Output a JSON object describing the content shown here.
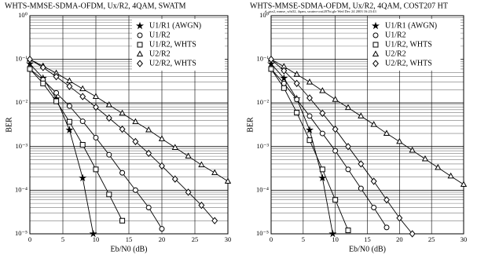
{
  "chart_data": [
    {
      "type": "line",
      "title": "WHTS-MMSE-SDMA-OFDM, Ux/R2, 4QAM, SWATM",
      "xlabel": "Eb/N0 (dB)",
      "ylabel": "BER",
      "xlim": [
        0,
        30
      ],
      "xticks": [
        0,
        5,
        10,
        15,
        20,
        25,
        30
      ],
      "ylim": [
        1e-05,
        1
      ],
      "log_y": true,
      "grid": true,
      "minor_grid": true,
      "legend": "upper right",
      "yticks": [
        {
          "value": 1e-05,
          "label": "10⁻⁵"
        },
        {
          "value": 0.0001,
          "label": "10⁻⁴"
        },
        {
          "value": 0.001,
          "label": "10⁻³"
        },
        {
          "value": 0.01,
          "label": "10⁻²"
        },
        {
          "value": 0.1,
          "label": "10⁻¹"
        },
        {
          "value": 1,
          "label": "10⁰"
        }
      ],
      "series": [
        {
          "name": "U1/R1 (AWGN)",
          "marker": "star",
          "color": "#000000",
          "x": [
            0,
            2,
            4,
            6,
            8,
            9.6
          ],
          "values": [
            0.079,
            0.037,
            0.0125,
            0.0024,
            0.00019,
            1e-05
          ]
        },
        {
          "name": "U1/R2",
          "marker": "circle",
          "color": "#000000",
          "x": [
            0,
            2,
            4,
            6,
            8,
            10,
            12,
            14,
            16,
            18,
            20
          ],
          "values": [
            0.06,
            0.034,
            0.017,
            0.0085,
            0.0038,
            0.0016,
            0.00065,
            0.00025,
            0.0001,
            4e-05,
            1.3e-05
          ]
        },
        {
          "name": "U1/R2, WHTS",
          "marker": "square",
          "color": "#000000",
          "x": [
            0,
            2,
            4,
            6,
            8,
            10,
            12,
            14
          ],
          "values": [
            0.06,
            0.028,
            0.011,
            0.0037,
            0.0011,
            0.0003,
            8e-05,
            2e-05
          ]
        },
        {
          "name": "U2/R2",
          "marker": "triangle",
          "color": "#000000",
          "x": [
            0,
            2,
            4,
            6,
            8,
            10,
            12,
            14,
            16,
            18,
            20,
            22,
            24,
            26,
            28,
            30
          ],
          "values": [
            0.1,
            0.07,
            0.048,
            0.032,
            0.021,
            0.014,
            0.009,
            0.0058,
            0.0037,
            0.0024,
            0.0015,
            0.00095,
            0.0006,
            0.00038,
            0.00025,
            0.00016
          ]
        },
        {
          "name": "U2/R2, WHTS",
          "marker": "diamond",
          "color": "#000000",
          "x": [
            0,
            2,
            4,
            6,
            8,
            10,
            12,
            14,
            16,
            18,
            20,
            22,
            24,
            26,
            28
          ],
          "values": [
            0.1,
            0.065,
            0.04,
            0.024,
            0.014,
            0.008,
            0.0045,
            0.0025,
            0.0013,
            0.0007,
            0.00036,
            0.00018,
            9e-05,
            4.5e-05,
            2e-05
          ]
        }
      ]
    },
    {
      "type": "line",
      "title": "WHTS-MMSE-SDMA-OFDM, Ux/R2, 4QAM, COST207 HT",
      "subtitle": "d_gsx2, mmse_wht32, 4qam, swatm-cost207ht.gle   Wed Dec 24 2003 16:23:43",
      "xlabel": "Eb/N0 (dB)",
      "ylabel": "BER",
      "xlim": [
        0,
        30
      ],
      "xticks": [
        0,
        5,
        10,
        15,
        20,
        25,
        30
      ],
      "ylim": [
        1e-05,
        1
      ],
      "log_y": true,
      "grid": true,
      "minor_grid": true,
      "legend": "upper right",
      "yticks": [
        {
          "value": 1e-05,
          "label": "10⁻⁵"
        },
        {
          "value": 0.0001,
          "label": "10⁻⁴"
        },
        {
          "value": 0.001,
          "label": "10⁻³"
        },
        {
          "value": 0.01,
          "label": "10⁻²"
        },
        {
          "value": 0.1,
          "label": "10⁻¹"
        },
        {
          "value": 1,
          "label": "10⁰"
        }
      ],
      "series": [
        {
          "name": "U1/R1 (AWGN)",
          "marker": "star",
          "color": "#000000",
          "x": [
            0,
            2,
            4,
            6,
            8,
            9.6
          ],
          "values": [
            0.079,
            0.037,
            0.0125,
            0.0024,
            0.00019,
            1e-05
          ]
        },
        {
          "name": "U1/R2",
          "marker": "circle",
          "color": "#000000",
          "x": [
            0,
            2,
            4,
            6,
            8,
            10,
            12,
            14,
            16,
            18
          ],
          "values": [
            0.06,
            0.028,
            0.012,
            0.005,
            0.002,
            0.0008,
            0.0003,
            0.00011,
            4e-05,
            1.4e-05
          ]
        },
        {
          "name": "U1/R2, WHTS",
          "marker": "square",
          "color": "#000000",
          "x": [
            0,
            2,
            4,
            6,
            8,
            10,
            12
          ],
          "values": [
            0.06,
            0.022,
            0.006,
            0.0014,
            0.0003,
            6e-05,
            1.2e-05
          ]
        },
        {
          "name": "U2/R2",
          "marker": "triangle",
          "color": "#000000",
          "x": [
            0,
            2,
            4,
            6,
            8,
            10,
            12,
            14,
            16,
            18,
            20,
            22,
            24,
            26,
            28,
            30
          ],
          "values": [
            0.1,
            0.068,
            0.045,
            0.03,
            0.019,
            0.012,
            0.0078,
            0.005,
            0.0032,
            0.002,
            0.0013,
            0.00082,
            0.00052,
            0.00033,
            0.00021,
            0.000135
          ]
        },
        {
          "name": "U2/R2, WHTS",
          "marker": "diamond",
          "color": "#000000",
          "x": [
            0,
            2,
            4,
            6,
            8,
            10,
            12,
            14,
            16,
            18,
            20,
            22
          ],
          "values": [
            0.1,
            0.055,
            0.028,
            0.013,
            0.0058,
            0.0025,
            0.001,
            0.0004,
            0.00016,
            6e-05,
            2.3e-05,
            1e-05
          ]
        }
      ]
    }
  ]
}
